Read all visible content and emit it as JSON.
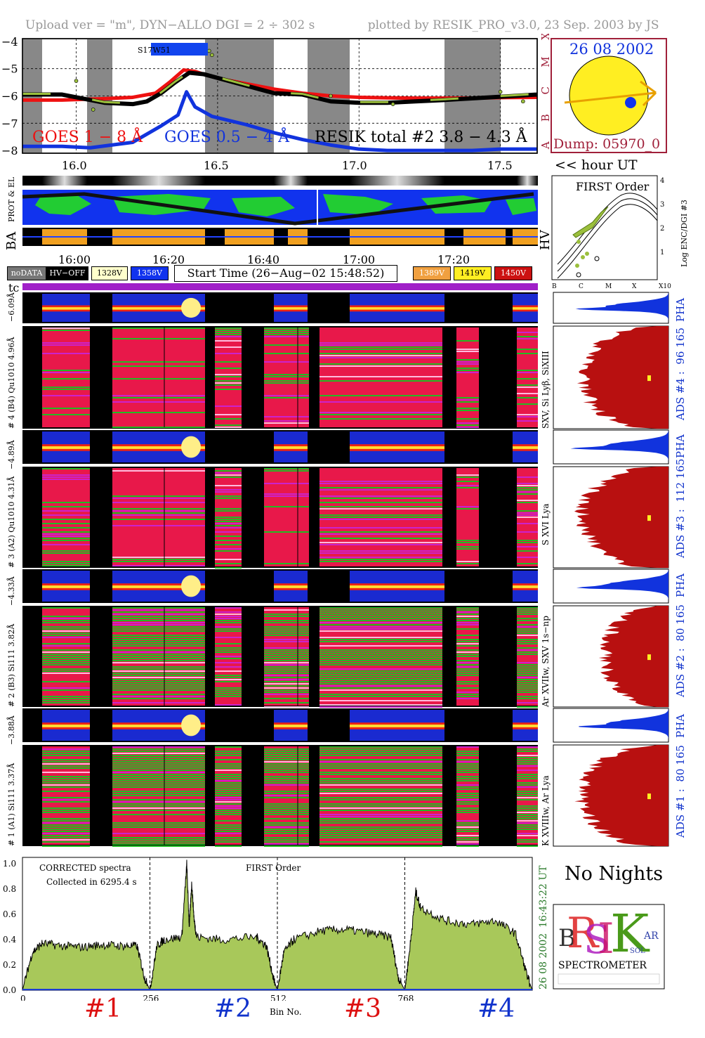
{
  "header": {
    "left": "Upload ver = \"m\", DYN−ALLO DGI =   2 ÷ 302 s",
    "right": "plotted by RESIK_PRO_v3.0, 23 Sep. 2003 by JS"
  },
  "goes_panel": {
    "yticks": [
      "−4",
      "−5",
      "−6",
      "−7",
      "−8"
    ],
    "class_labels": [
      "X",
      "M",
      "C",
      "B",
      "A"
    ],
    "badge": "S17W51",
    "legend": [
      {
        "label": "GOES 1 − 8 Å",
        "color": "#ee1111"
      },
      {
        "label": "GOES 0.5 − 4 Å",
        "color": "#1133dd"
      },
      {
        "label": "RESIK total #2  3.8 − 4.3 Å",
        "color": "#000000"
      }
    ],
    "xticks": [
      "16.0",
      "16.5",
      "17.0",
      "17.5"
    ],
    "xunit": "<< hour UT"
  },
  "sun": {
    "date": "26 08 2002",
    "dump": "Dump: 05970_0"
  },
  "side_labels": {
    "prot_el": "PROT & EL",
    "ba": "BA",
    "hv": "HV",
    "tc": "tc"
  },
  "time_axis": [
    "16:00",
    "16:20",
    "16:40",
    "17:00",
    "17:20"
  ],
  "status": {
    "nodata": "noDATA",
    "hvoff": "HV−OFF",
    "v1": "1328V",
    "v2": "1358V",
    "start": "Start Time (26−Aug−02 15:48:52)",
    "v3": "1389V",
    "v4": "1419V",
    "v5": "1450V"
  },
  "first_order": {
    "title": "FIRST Order",
    "ylabel": "Log ENC/DGI #3",
    "yticks": [
      "1",
      "2",
      "3",
      "4"
    ],
    "xticks": [
      "B",
      "C",
      "M",
      "X",
      "X10"
    ]
  },
  "spectro_panels": [
    {
      "pha": "−6.09Å",
      "label": "# 4 (B4) Qu1010 4.96Å",
      "ions": "SXV, Si Lyβ, SiXIII",
      "ads": "ADS #4 :",
      "range": "96 165"
    },
    {
      "pha": "−4.89Å",
      "label": "# 3 (A2) Qu1010 4.31Å",
      "ions": "S XVI Lya",
      "ads": "ADS #3 :",
      "range": "112 165"
    },
    {
      "pha": "−4.33Å",
      "label": "# 2 (B3) Si111 3.82Å",
      "ions": "Ar XVIIw, SXV 1s−np",
      "ads": "ADS #2 :",
      "range": "80 165"
    },
    {
      "pha": "−3.88Å",
      "label": "# 1 (A1) Si111 3.37Å",
      "ions": "K XVIIIw, Ar Lya",
      "ads": "ADS #1 :",
      "range": "80 165"
    }
  ],
  "pha_label": "PHA",
  "spectrum": {
    "title_left": "CORRECTED spectra",
    "collected": "Collected in  6295.4 s",
    "title_mid": "FIRST Order",
    "yticks": [
      "0.0",
      "0.2",
      "0.4",
      "0.6",
      "0.8",
      "1.0"
    ],
    "xticks": [
      "0",
      "256",
      "512",
      "768"
    ],
    "xlabel": "Bin No.",
    "time": "16:43:22 UT",
    "date": "26 08 2002",
    "channels": [
      "#1",
      "#2",
      "#3",
      "#4"
    ],
    "channel_colors": [
      "#dd1111",
      "#1133cc",
      "#dd1111",
      "#1133cc"
    ]
  },
  "nights": "No Nights",
  "logo": {
    "letters": "RESIK",
    "text": "SPECTROMETER"
  },
  "chart_data": [
    {
      "type": "line",
      "xlabel": "<< hour UT",
      "ylabel": "",
      "xlim": [
        15.81,
        17.63
      ],
      "ylim": [
        -8.1,
        -3.9
      ],
      "series": [
        {
          "name": "GOES 1 − 8 Å",
          "color": "#ee1111",
          "x": [
            15.81,
            15.95,
            16.1,
            16.2,
            16.28,
            16.33,
            16.38,
            16.42,
            16.45,
            16.5,
            16.6,
            16.7,
            16.8,
            16.9,
            17.0,
            17.1,
            17.2,
            17.3,
            17.4,
            17.5,
            17.63
          ],
          "y": [
            -6.15,
            -6.15,
            -6.1,
            -6.05,
            -5.9,
            -5.5,
            -5.05,
            -5.1,
            -5.2,
            -5.35,
            -5.55,
            -5.75,
            -5.9,
            -6.0,
            -6.05,
            -6.07,
            -6.08,
            -6.08,
            -6.08,
            -6.06,
            -6.05
          ]
        },
        {
          "name": "GOES 0.5 − 4 Å",
          "color": "#1133dd",
          "x": [
            15.81,
            15.95,
            16.05,
            16.2,
            16.3,
            16.36,
            16.39,
            16.42,
            16.48,
            16.6,
            16.7,
            16.8,
            16.9,
            17.0,
            17.1,
            17.2,
            17.3,
            17.4,
            17.5,
            17.63
          ],
          "y": [
            -7.85,
            -7.85,
            -7.9,
            -7.7,
            -7.1,
            -6.7,
            -5.85,
            -6.4,
            -6.75,
            -7.05,
            -7.35,
            -7.6,
            -7.8,
            -7.95,
            -8.0,
            -8.0,
            -8.0,
            -8.0,
            -7.95,
            -7.95
          ]
        },
        {
          "name": "RESIK total #2  3.8 − 4.3 Å",
          "color": "#000000",
          "x": [
            15.81,
            15.9,
            15.95,
            16.1,
            16.2,
            16.25,
            16.3,
            16.35,
            16.4,
            16.45,
            16.7,
            16.8,
            16.9,
            17.0,
            17.1,
            17.2,
            17.3,
            17.55,
            17.63
          ],
          "y": [
            -5.95,
            -5.95,
            -5.95,
            -6.25,
            -6.3,
            -6.2,
            -5.9,
            -5.5,
            -5.15,
            -5.2,
            -5.9,
            -5.95,
            -6.2,
            -6.25,
            -6.25,
            -6.2,
            -6.15,
            -6.0,
            -5.95
          ]
        }
      ]
    },
    {
      "type": "area",
      "xlabel": "Bin No.",
      "ylabel": "",
      "xlim": [
        0,
        1024
      ],
      "ylim": [
        0,
        1.05
      ],
      "series": [
        {
          "name": "#1",
          "x": [
            0,
            20,
            40,
            80,
            120,
            160,
            200,
            230,
            245,
            256
          ],
          "y": [
            0.0,
            0.3,
            0.37,
            0.35,
            0.34,
            0.36,
            0.35,
            0.35,
            0.1,
            0.0
          ]
        },
        {
          "name": "#2",
          "x": [
            256,
            270,
            285,
            320,
            330,
            335,
            340,
            345,
            350,
            400,
            470,
            490,
            505,
            512
          ],
          "y": [
            0.0,
            0.35,
            0.4,
            0.42,
            1.0,
            0.5,
            0.85,
            0.55,
            0.42,
            0.4,
            0.42,
            0.35,
            0.08,
            0.0
          ]
        },
        {
          "name": "#3",
          "x": [
            512,
            525,
            545,
            600,
            650,
            700,
            740,
            755,
            768
          ],
          "y": [
            0.0,
            0.3,
            0.4,
            0.47,
            0.48,
            0.45,
            0.42,
            0.1,
            0.0
          ]
        },
        {
          "name": "#4",
          "x": [
            768,
            780,
            790,
            800,
            850,
            900,
            950,
            990,
            1015,
            1024
          ],
          "y": [
            0.0,
            0.4,
            0.78,
            0.65,
            0.55,
            0.52,
            0.55,
            0.45,
            0.1,
            0.0
          ]
        }
      ]
    }
  ]
}
